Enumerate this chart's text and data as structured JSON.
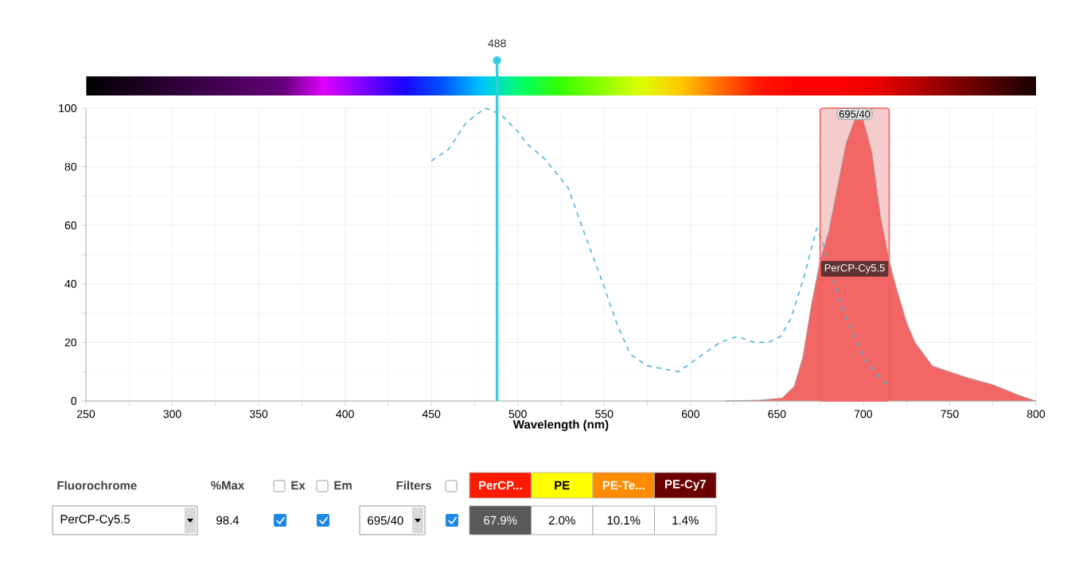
{
  "chart_data": [
    {
      "type": "line",
      "xlabel": "Wavelength (nm)",
      "xlim": [
        250,
        800
      ],
      "ylim": [
        0,
        100
      ],
      "xticks": [
        250,
        300,
        350,
        400,
        450,
        500,
        550,
        600,
        650,
        700,
        750,
        800
      ],
      "yticks": [
        0,
        20,
        40,
        60,
        80,
        100
      ],
      "grid": true,
      "series": [
        {
          "type": "area",
          "name": "PerCP-Cy5.5",
          "color": "#f26666",
          "x": [
            620,
            640,
            653,
            660,
            665,
            670,
            675,
            680,
            685,
            690,
            695,
            700,
            705,
            710,
            715,
            719,
            725,
            730,
            740,
            750,
            760,
            775,
            790,
            800
          ],
          "values": [
            0,
            0.3,
            1,
            5,
            15,
            33,
            48,
            58,
            73,
            88,
            96,
            96,
            85,
            63,
            48,
            39,
            27,
            20,
            12,
            10,
            8,
            5.6,
            2,
            0
          ]
        },
        {
          "line_style": "dashed",
          "color": "#4fb3d9",
          "x": [
            450,
            460,
            470,
            481,
            490,
            500,
            505,
            515,
            529,
            540,
            550,
            557,
            565,
            575,
            593,
            605,
            617,
            627,
            637,
            645,
            652,
            658,
            666,
            673,
            676,
            682,
            689,
            695,
            701,
            708,
            715
          ],
          "values": [
            82,
            86,
            95,
            100,
            98,
            92,
            88,
            83,
            73,
            55,
            39,
            27,
            16,
            12,
            10,
            15,
            20,
            22,
            20,
            20,
            22,
            28,
            43,
            59,
            55,
            42,
            30,
            22,
            14,
            9,
            5
          ]
        }
      ],
      "bands": [
        {
          "axis": "x",
          "from": 675,
          "to": 715,
          "label": "695/40",
          "color": "#f4cccc"
        }
      ],
      "ref_lines": [
        {
          "axis": "x",
          "value": 488,
          "label": "488",
          "color": "#33cce0"
        }
      ]
    },
    {
      "type": "other",
      "categories": [
        "PerCP...",
        "PE",
        "PE-Te...",
        "PE-Cy7"
      ],
      "colors": [
        "#ff1a00",
        "#ffff00",
        "#ff8c00",
        "#6b0000"
      ],
      "annotations": [
        "Fluorochrome",
        "%Max",
        "Ex",
        "Em",
        "Filters",
        "PerCP-Cy5.5",
        "98.4",
        "695/40",
        "67.9%",
        "2.0%",
        "10.1%",
        "1.4%"
      ]
    }
  ]
}
